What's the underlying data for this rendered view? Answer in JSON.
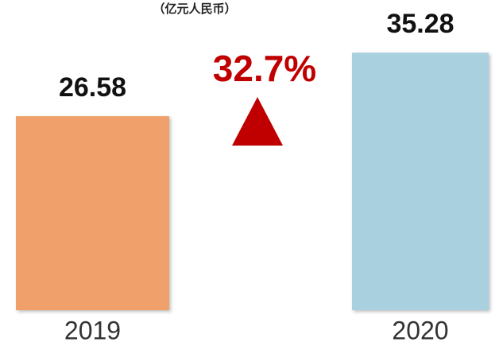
{
  "chart_data": {
    "type": "bar",
    "subtitle": "（亿元人民币）",
    "categories": [
      "2019",
      "2020"
    ],
    "values": [
      26.58,
      35.28
    ],
    "colors": [
      "#f0a06a",
      "#a9d0df"
    ],
    "annotation": "32.7%",
    "ylim": [
      0,
      42.5
    ]
  }
}
